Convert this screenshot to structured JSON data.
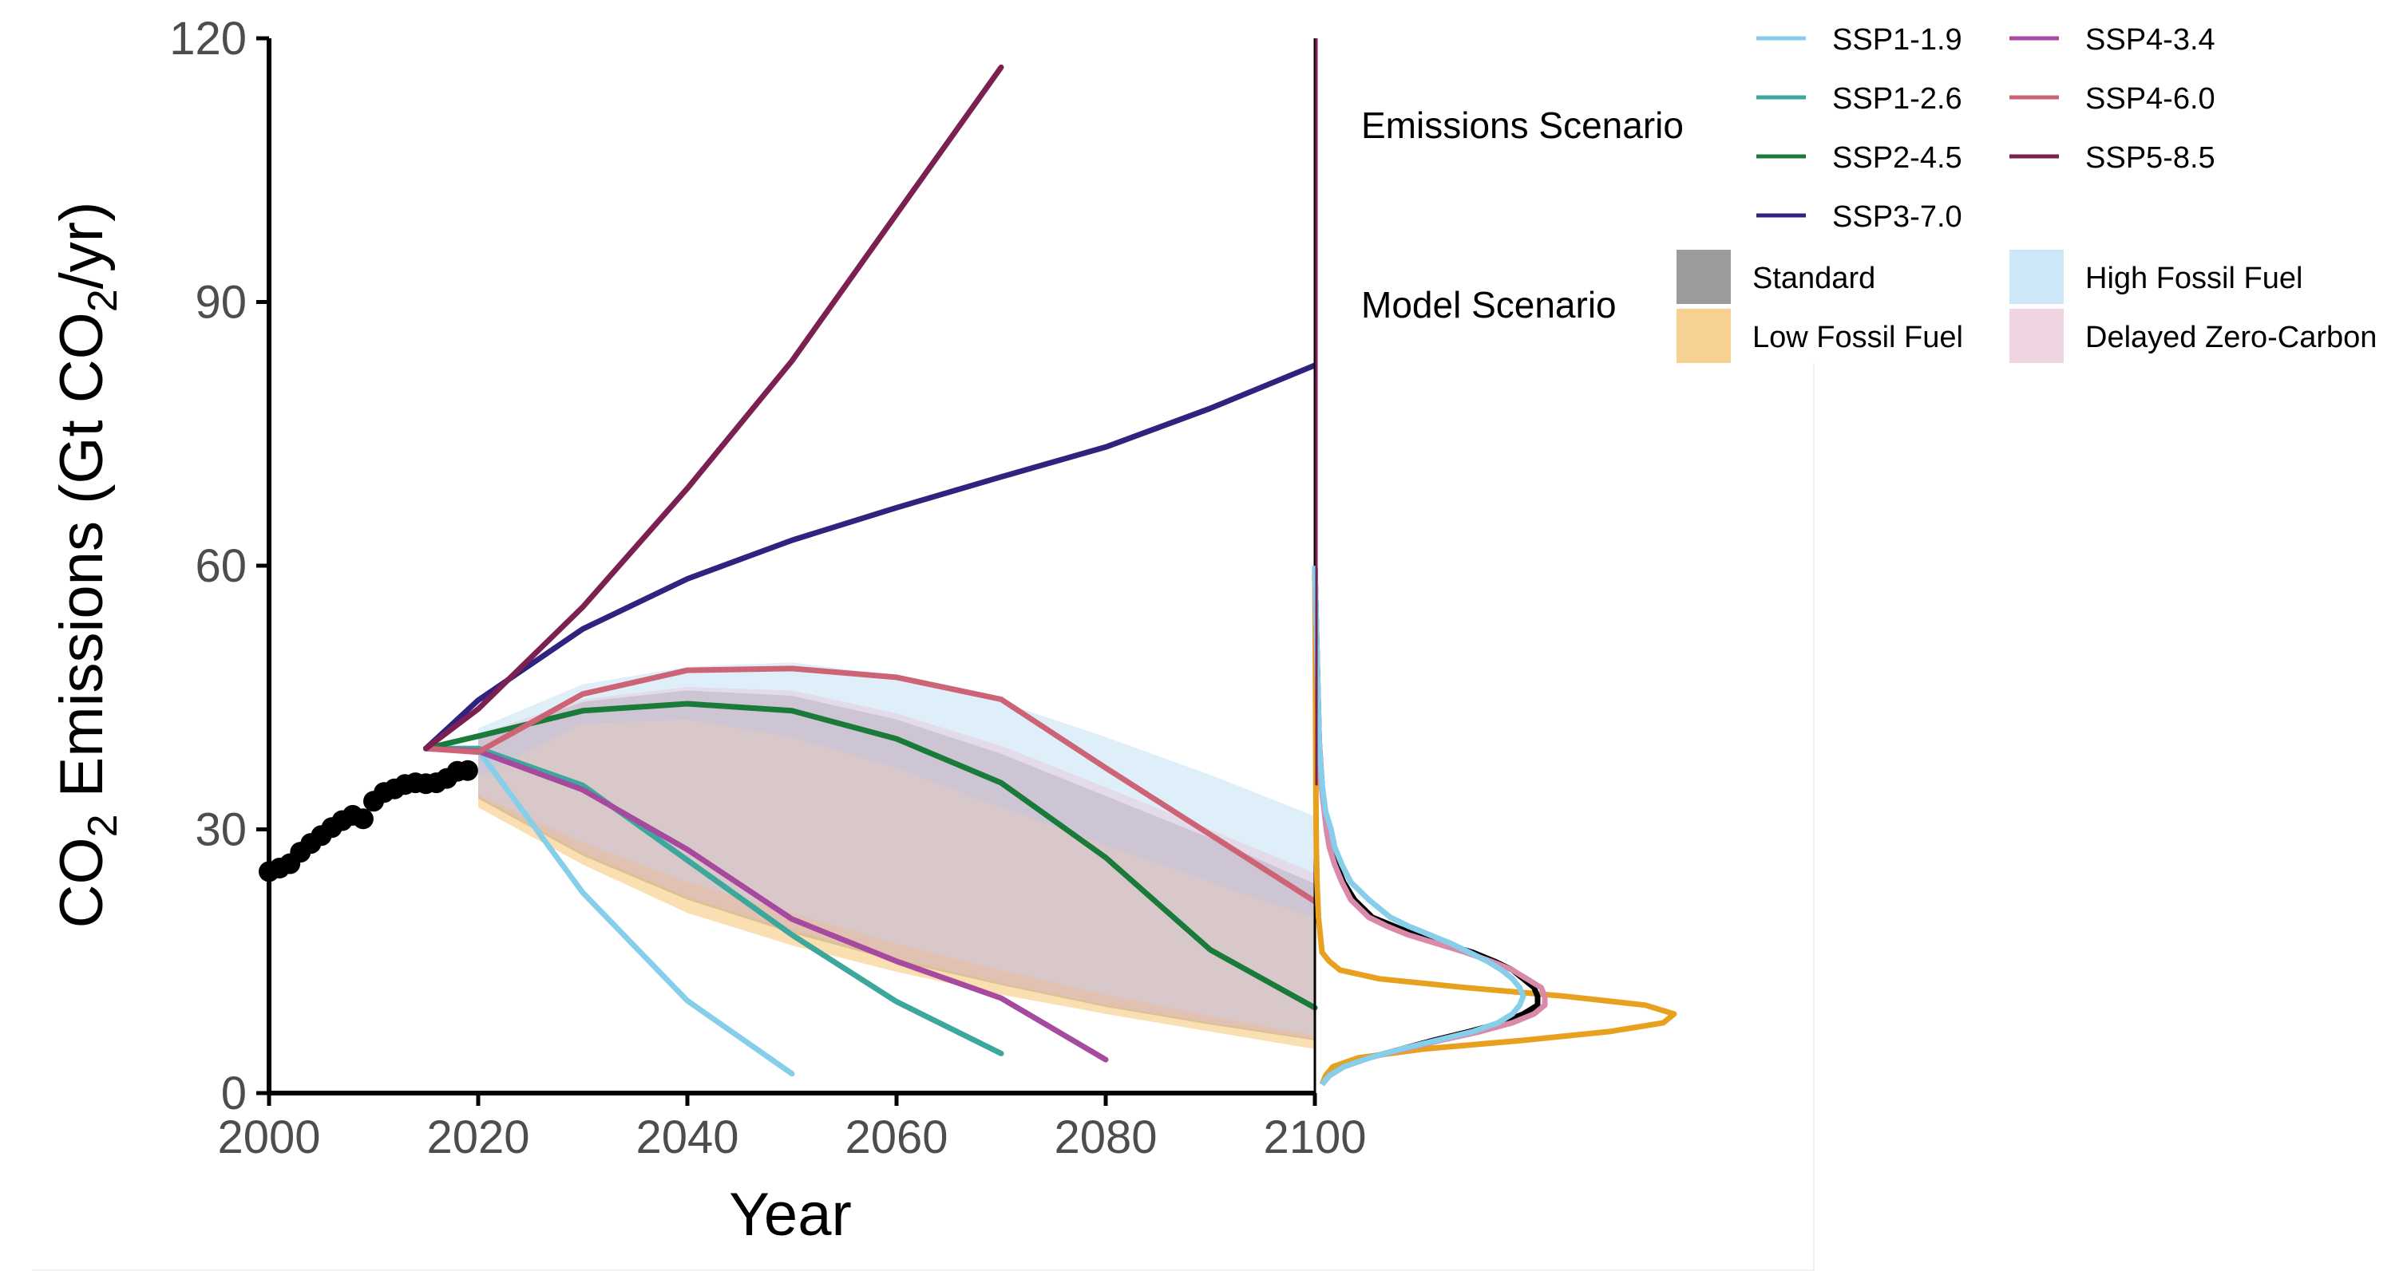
{
  "chart_data": {
    "type": "line",
    "title": "",
    "xlabel": "Year",
    "ylabel": {
      "pre": "CO",
      "sub1": "2",
      "mid": " Emissions (Gt CO",
      "sub2": "2",
      "post": "/yr)"
    },
    "xlim": [
      2000,
      2100
    ],
    "ylim": [
      0,
      120
    ],
    "xticks": [
      2000,
      2020,
      2040,
      2060,
      2080,
      2100
    ],
    "yticks": [
      0,
      30,
      60,
      90,
      120
    ],
    "grid": false,
    "legend_placement": "top-right",
    "historical": {
      "color": "#000000",
      "points": [
        [
          2000,
          25.2
        ],
        [
          2001,
          25.6
        ],
        [
          2002,
          26.1
        ],
        [
          2003,
          27.4
        ],
        [
          2004,
          28.4
        ],
        [
          2005,
          29.3
        ],
        [
          2006,
          30.2
        ],
        [
          2007,
          31.0
        ],
        [
          2008,
          31.6
        ],
        [
          2009,
          31.2
        ],
        [
          2010,
          33.2
        ],
        [
          2011,
          34.2
        ],
        [
          2012,
          34.6
        ],
        [
          2013,
          35.1
        ],
        [
          2014,
          35.3
        ],
        [
          2015,
          35.2
        ],
        [
          2016,
          35.3
        ],
        [
          2017,
          35.8
        ],
        [
          2018,
          36.6
        ],
        [
          2019,
          36.7
        ]
      ]
    },
    "emissions_scenarios": {
      "title": "Emissions Scenario",
      "series": [
        {
          "name": "SSP1-1.9",
          "color": "#87ceeb",
          "x": [
            2015,
            2020,
            2030,
            2040,
            2050
          ],
          "values": [
            39.2,
            39.0,
            22.8,
            10.5,
            2.2
          ]
        },
        {
          "name": "SSP1-2.6",
          "color": "#3da79c",
          "x": [
            2015,
            2020,
            2030,
            2040,
            2050,
            2060,
            2070
          ],
          "values": [
            39.2,
            39.2,
            35.0,
            26.5,
            18.0,
            10.4,
            4.5
          ]
        },
        {
          "name": "SSP2-4.5",
          "color": "#1a7a3a",
          "x": [
            2015,
            2020,
            2030,
            2040,
            2050,
            2060,
            2070,
            2080,
            2090,
            2100
          ],
          "values": [
            39.2,
            40.6,
            43.5,
            44.3,
            43.5,
            40.3,
            35.3,
            26.8,
            16.3,
            9.7
          ]
        },
        {
          "name": "SSP3-7.0",
          "color": "#2e2480",
          "x": [
            2015,
            2020,
            2030,
            2040,
            2050,
            2060,
            2070,
            2080,
            2090,
            2100
          ],
          "values": [
            39.2,
            44.7,
            52.8,
            58.5,
            62.9,
            66.6,
            70.1,
            73.5,
            77.9,
            82.8
          ]
        },
        {
          "name": "SSP4-3.4",
          "color": "#a54a9e",
          "x": [
            2015,
            2020,
            2030,
            2040,
            2050,
            2060,
            2070,
            2080
          ],
          "values": [
            39.2,
            38.9,
            34.5,
            27.7,
            19.8,
            15.0,
            10.8,
            3.8
          ]
        },
        {
          "name": "SSP4-6.0",
          "color": "#cd6475",
          "x": [
            2015,
            2020,
            2030,
            2040,
            2050,
            2060,
            2070,
            2080,
            2090,
            2100
          ],
          "values": [
            39.2,
            38.8,
            45.4,
            48.1,
            48.3,
            47.3,
            44.8,
            37.0,
            29.4,
            21.8
          ]
        },
        {
          "name": "SSP5-8.5",
          "color": "#7c2052",
          "x": [
            2015,
            2020,
            2030,
            2040,
            2050,
            2060,
            2070
          ],
          "values": [
            39.2,
            43.7,
            55.3,
            68.8,
            83.3,
            100.0,
            116.7
          ]
        }
      ]
    },
    "model_scenarios": {
      "title": "Model Scenario",
      "bands": [
        {
          "name": "Standard",
          "color": "#9b9b9b",
          "opacity": 0.75,
          "x": [
            2020,
            2030,
            2040,
            2050,
            2060,
            2070,
            2080,
            2090,
            2100
          ],
          "upper": [
            40.3,
            44.5,
            45.8,
            45.2,
            42.5,
            38.6,
            33.8,
            29.0,
            23.8
          ],
          "lower": [
            33.5,
            27.0,
            22.0,
            18.2,
            15.0,
            12.3,
            9.8,
            7.8,
            6.0
          ]
        },
        {
          "name": "Low Fossil Fuel",
          "color": "#f5c97e",
          "opacity": 0.6,
          "x": [
            2020,
            2030,
            2040,
            2050,
            2060,
            2070,
            2080,
            2090,
            2100
          ],
          "upper": [
            36.0,
            42.0,
            42.5,
            40.5,
            37.0,
            32.5,
            28.2,
            24.0,
            20.0
          ],
          "lower": [
            32.5,
            26.0,
            20.5,
            16.8,
            13.8,
            11.2,
            9.0,
            7.0,
            5.0
          ]
        },
        {
          "name": "High Fossil Fuel",
          "color": "#b8dcf5",
          "opacity": 0.45,
          "x": [
            2020,
            2030,
            2040,
            2050,
            2060,
            2070,
            2080,
            2090,
            2100
          ],
          "upper": [
            41.5,
            46.5,
            48.5,
            49.0,
            47.5,
            44.5,
            40.5,
            36.2,
            31.5
          ],
          "lower": [
            34.0,
            28.5,
            24.0,
            20.5,
            17.0,
            14.0,
            11.2,
            8.8,
            6.5
          ]
        },
        {
          "name": "Delayed Zero-Carbon",
          "color": "#e8c3d6",
          "opacity": 0.45,
          "x": [
            2020,
            2030,
            2040,
            2050,
            2060,
            2070,
            2080,
            2090,
            2100
          ],
          "upper": [
            40.8,
            44.8,
            46.2,
            45.8,
            43.2,
            39.5,
            34.8,
            30.0,
            25.0
          ],
          "lower": [
            33.8,
            27.3,
            22.3,
            18.5,
            15.3,
            12.5,
            10.0,
            8.0,
            6.2
          ]
        }
      ]
    },
    "density_2100": {
      "description_type": "density of 2100 emissions",
      "curves": [
        {
          "name": "Low Fossil Fuel",
          "color": "#e8a01f",
          "points": [
            [
              0.02,
              1
            ],
            [
              0.03,
              2
            ],
            [
              0.05,
              3
            ],
            [
              0.12,
              4
            ],
            [
              0.3,
              5
            ],
            [
              0.58,
              6
            ],
            [
              0.82,
              7
            ],
            [
              0.97,
              8
            ],
            [
              1.0,
              9
            ],
            [
              0.92,
              10
            ],
            [
              0.7,
              11
            ],
            [
              0.42,
              12
            ],
            [
              0.18,
              13
            ],
            [
              0.07,
              14
            ],
            [
              0.04,
              15
            ],
            [
              0.02,
              16
            ],
            [
              0.015,
              18
            ],
            [
              0.01,
              20
            ],
            [
              0.006,
              24
            ],
            [
              0.004,
              28
            ],
            [
              0.003,
              34
            ],
            [
              0.002,
              45
            ],
            [
              0.0,
              60
            ]
          ]
        },
        {
          "name": "Standard",
          "color": "#000000",
          "points": [
            [
              0.02,
              1
            ],
            [
              0.04,
              2
            ],
            [
              0.08,
              3
            ],
            [
              0.15,
              4
            ],
            [
              0.24,
              5
            ],
            [
              0.33,
              6
            ],
            [
              0.43,
              7
            ],
            [
              0.52,
              8
            ],
            [
              0.58,
              9
            ],
            [
              0.62,
              10
            ],
            [
              0.62,
              11
            ],
            [
              0.61,
              12
            ],
            [
              0.58,
              13
            ],
            [
              0.55,
              14
            ],
            [
              0.5,
              15
            ],
            [
              0.44,
              16
            ],
            [
              0.36,
              17
            ],
            [
              0.28,
              18
            ],
            [
              0.22,
              19
            ],
            [
              0.16,
              20
            ],
            [
              0.11,
              22
            ],
            [
              0.08,
              24
            ],
            [
              0.06,
              26
            ],
            [
              0.045,
              28
            ],
            [
              0.035,
              30
            ],
            [
              0.02,
              35
            ],
            [
              0.012,
              40
            ],
            [
              0.006,
              50
            ],
            [
              0.0,
              60
            ]
          ]
        },
        {
          "name": "Delayed Zero-Carbon",
          "color": "#d98aaa",
          "points": [
            [
              0.02,
              1
            ],
            [
              0.04,
              2
            ],
            [
              0.08,
              3
            ],
            [
              0.15,
              4
            ],
            [
              0.25,
              5
            ],
            [
              0.35,
              6
            ],
            [
              0.46,
              7
            ],
            [
              0.55,
              8
            ],
            [
              0.61,
              9
            ],
            [
              0.64,
              10
            ],
            [
              0.64,
              11
            ],
            [
              0.63,
              12
            ],
            [
              0.59,
              13
            ],
            [
              0.55,
              14
            ],
            [
              0.49,
              15
            ],
            [
              0.42,
              16
            ],
            [
              0.34,
              17
            ],
            [
              0.26,
              18
            ],
            [
              0.2,
              19
            ],
            [
              0.15,
              20
            ],
            [
              0.1,
              22
            ],
            [
              0.075,
              24
            ],
            [
              0.055,
              26
            ],
            [
              0.04,
              28
            ],
            [
              0.032,
              30
            ],
            [
              0.018,
              35
            ],
            [
              0.011,
              40
            ],
            [
              0.005,
              50
            ],
            [
              0.0,
              60
            ]
          ]
        },
        {
          "name": "High Fossil Fuel",
          "color": "#87ceeb",
          "points": [
            [
              0.02,
              1
            ],
            [
              0.04,
              2
            ],
            [
              0.08,
              3
            ],
            [
              0.15,
              4
            ],
            [
              0.24,
              5
            ],
            [
              0.34,
              6
            ],
            [
              0.44,
              7
            ],
            [
              0.51,
              8
            ],
            [
              0.55,
              9
            ],
            [
              0.57,
              10
            ],
            [
              0.58,
              11
            ],
            [
              0.57,
              12
            ],
            [
              0.55,
              13
            ],
            [
              0.52,
              14
            ],
            [
              0.48,
              15
            ],
            [
              0.43,
              16
            ],
            [
              0.38,
              17
            ],
            [
              0.32,
              18
            ],
            [
              0.26,
              19
            ],
            [
              0.21,
              20
            ],
            [
              0.15,
              22
            ],
            [
              0.1,
              24
            ],
            [
              0.075,
              26
            ],
            [
              0.055,
              28
            ],
            [
              0.045,
              30
            ],
            [
              0.03,
              32
            ],
            [
              0.02,
              35
            ],
            [
              0.012,
              40
            ],
            [
              0.006,
              50
            ],
            [
              0.0,
              60
            ]
          ]
        }
      ]
    }
  }
}
